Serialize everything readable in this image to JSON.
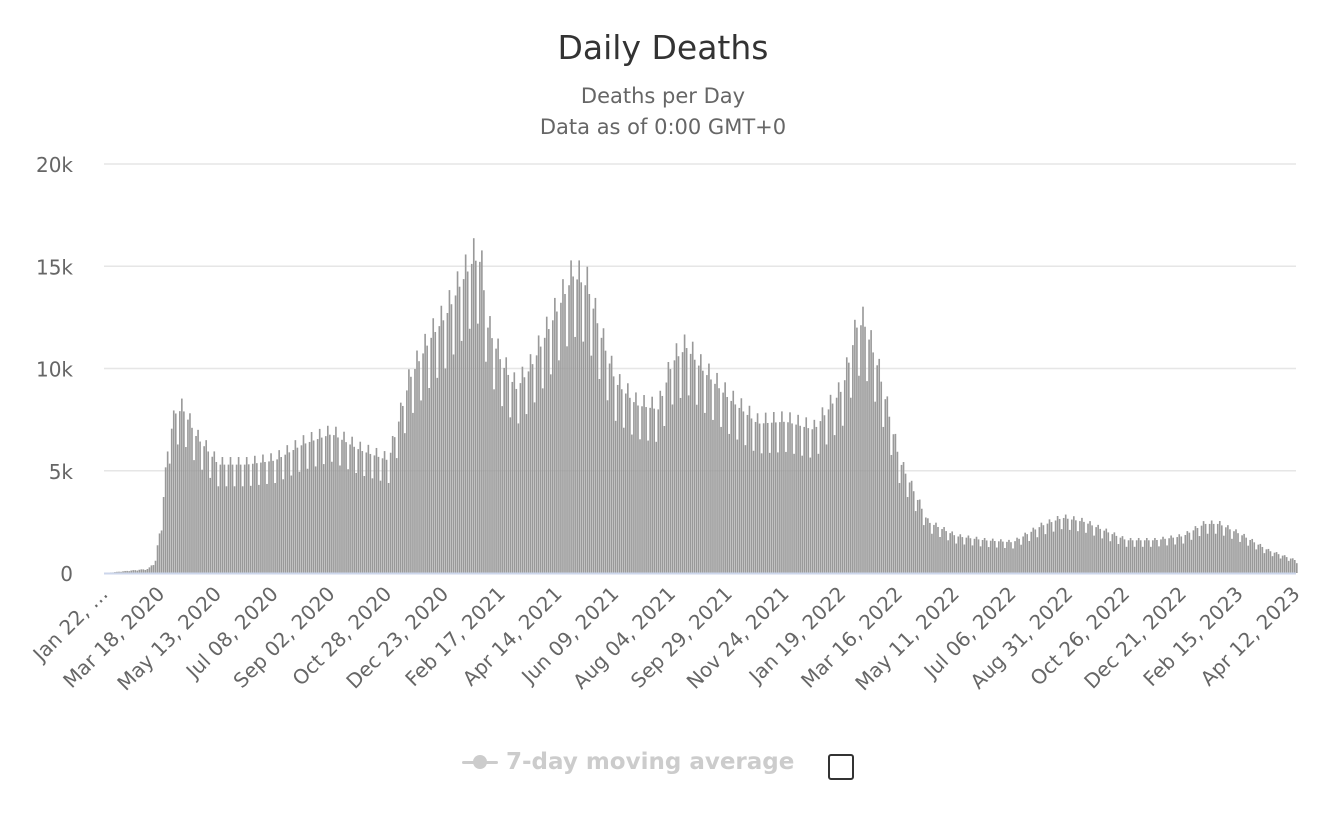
{
  "chart_data": {
    "type": "bar",
    "title": "Daily Deaths",
    "subtitle": [
      "Deaths per Day",
      "Data as of 0:00 GMT+0"
    ],
    "xlabel": "",
    "ylabel": "",
    "ylim": [
      0,
      20000
    ],
    "yticks": [
      0,
      5000,
      10000,
      15000,
      20000
    ],
    "ytick_labels": [
      "0",
      "5k",
      "10k",
      "15k",
      "20k"
    ],
    "xtick_labels": [
      "Jan 22, …",
      "Mar 18, 2020",
      "May 13, 2020",
      "Jul 08, 2020",
      "Sep 02, 2020",
      "Oct 28, 2020",
      "Dec 23, 2020",
      "Feb 17, 2021",
      "Apr 14, 2021",
      "Jun 09, 2021",
      "Aug 04, 2021",
      "Sep 29, 2021",
      "Nov 24, 2021",
      "Jan 19, 2022",
      "Mar 16, 2022",
      "May 11, 2022",
      "Jul 06, 2022",
      "Aug 31, 2022",
      "Oct 26, 2022",
      "Dec 21, 2022",
      "Feb 15, 2023",
      "Apr 12, 2023"
    ],
    "x_start": "Jan 22, 2020",
    "x_end": "Apr 12, 2023",
    "grid": true,
    "bar_color": "#999999",
    "series": [
      {
        "name": "Daily Deaths",
        "x": [
          "Jan 22, 2020",
          "Mar 05, 2020",
          "Mar 12, 2020",
          "Mar 18, 2020",
          "Mar 25, 2020",
          "Apr 01, 2020",
          "Apr 08, 2020",
          "Apr 15, 2020",
          "Apr 22, 2020",
          "Apr 29, 2020",
          "May 13, 2020",
          "Jun 10, 2020",
          "Jul 08, 2020",
          "Aug 05, 2020",
          "Sep 02, 2020",
          "Sep 30, 2020",
          "Oct 28, 2020",
          "Nov 18, 2020",
          "Dec 09, 2020",
          "Dec 23, 2020",
          "Jan 06, 2021",
          "Jan 20, 2021",
          "Jan 27, 2021",
          "Feb 03, 2021",
          "Feb 17, 2021",
          "Mar 03, 2021",
          "Mar 17, 2021",
          "Apr 14, 2021",
          "Apr 28, 2021",
          "May 12, 2021",
          "May 26, 2021",
          "Jun 09, 2021",
          "Jun 30, 2021",
          "Jul 21, 2021",
          "Aug 04, 2021",
          "Aug 18, 2021",
          "Sep 01, 2021",
          "Sep 29, 2021",
          "Oct 27, 2021",
          "Nov 24, 2021",
          "Dec 22, 2021",
          "Jan 19, 2022",
          "Feb 02, 2022",
          "Feb 09, 2022",
          "Feb 23, 2022",
          "Mar 16, 2022",
          "Apr 13, 2022",
          "May 11, 2022",
          "Jun 08, 2022",
          "Jul 06, 2022",
          "Aug 03, 2022",
          "Aug 24, 2022",
          "Sep 14, 2022",
          "Oct 26, 2022",
          "Nov 23, 2022",
          "Dec 21, 2022",
          "Jan 11, 2023",
          "Jan 25, 2023",
          "Feb 15, 2023",
          "Mar 15, 2023",
          "Apr 12, 2023"
        ],
        "values": [
          0,
          200,
          600,
          2600,
          6500,
          7800,
          8000,
          7300,
          6600,
          6200,
          5300,
          5300,
          5500,
          6300,
          6800,
          6000,
          5500,
          9500,
          11500,
          12500,
          14000,
          15300,
          15200,
          12000,
          10200,
          9000,
          10000,
          13000,
          14500,
          14000,
          11500,
          9300,
          8200,
          8000,
          10300,
          11000,
          10000,
          8500,
          7300,
          7400,
          7000,
          9000,
          12000,
          12200,
          10000,
          5500,
          2500,
          1800,
          1600,
          1500,
          2300,
          2700,
          2500,
          1600,
          1600,
          1800,
          2400,
          2400,
          1900,
          1100,
          600
        ]
      }
    ]
  }
}
